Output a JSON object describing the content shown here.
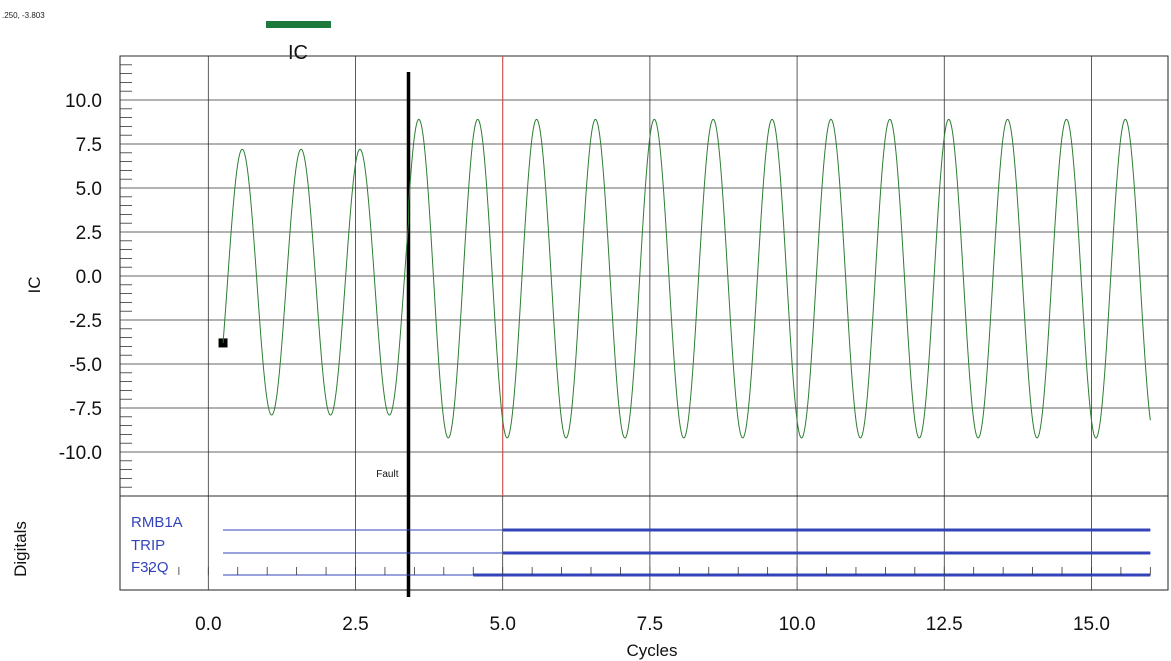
{
  "cursor_readout": ".250, -3.803",
  "chart_data": {
    "type": "line",
    "title": "IC",
    "xlabel": "Cycles",
    "ylabel": "IC",
    "xlim": [
      -1.5,
      16.3
    ],
    "ylim": [
      -12.5,
      12.5
    ],
    "x_ticks": [
      0.0,
      2.5,
      5.0,
      7.5,
      10.0,
      12.5,
      15.0
    ],
    "x_tick_labels": [
      "0.0",
      "2.5",
      "5.0",
      "7.5",
      "10.0",
      "12.5",
      "15.0"
    ],
    "y_ticks": [
      10.0,
      7.5,
      5.0,
      2.5,
      0.0,
      -2.5,
      -5.0,
      -7.5,
      -10.0
    ],
    "y_tick_labels": [
      "10.0",
      "7.5",
      "5.0",
      "2.5",
      "0.0",
      "-2.5",
      "-5.0",
      "-7.5",
      "-10.0"
    ],
    "grid": true,
    "series": [
      {
        "name": "IC",
        "color": "#2e7d32",
        "waveform": "sine",
        "x_start": 0.25,
        "x_end": 16.0,
        "start_value": -3.803,
        "cycle_period": 1.0,
        "segments": [
          {
            "from": 0.25,
            "to": 3.4,
            "peak": 7.2,
            "trough": -7.9
          },
          {
            "from": 3.4,
            "to": 16.0,
            "peak": 8.9,
            "trough": -9.2
          }
        ]
      }
    ],
    "annotations": [
      {
        "type": "vline",
        "x": 3.4,
        "label": "Fault",
        "color": "#000000"
      },
      {
        "type": "vline",
        "x": 5.0,
        "color": "#e05050"
      },
      {
        "type": "marker",
        "x": 0.25,
        "y": -3.803,
        "shape": "square",
        "color": "#000000"
      }
    ],
    "digitals": {
      "label": "Digitals",
      "channels": [
        {
          "name": "RMB1A",
          "asserted_from": 5.0,
          "x_start": 0.25,
          "x_end": 16.0
        },
        {
          "name": "TRIP",
          "asserted_from": 5.0,
          "x_start": 0.25,
          "x_end": 16.0
        },
        {
          "name": "F32Q",
          "asserted_from": 4.5,
          "x_start": 0.25,
          "x_end": 16.0
        }
      ]
    },
    "colors": {
      "title_bar": "#1e7a3c",
      "digital_line": "#3344bb",
      "digital_text": "#3344bb"
    }
  }
}
